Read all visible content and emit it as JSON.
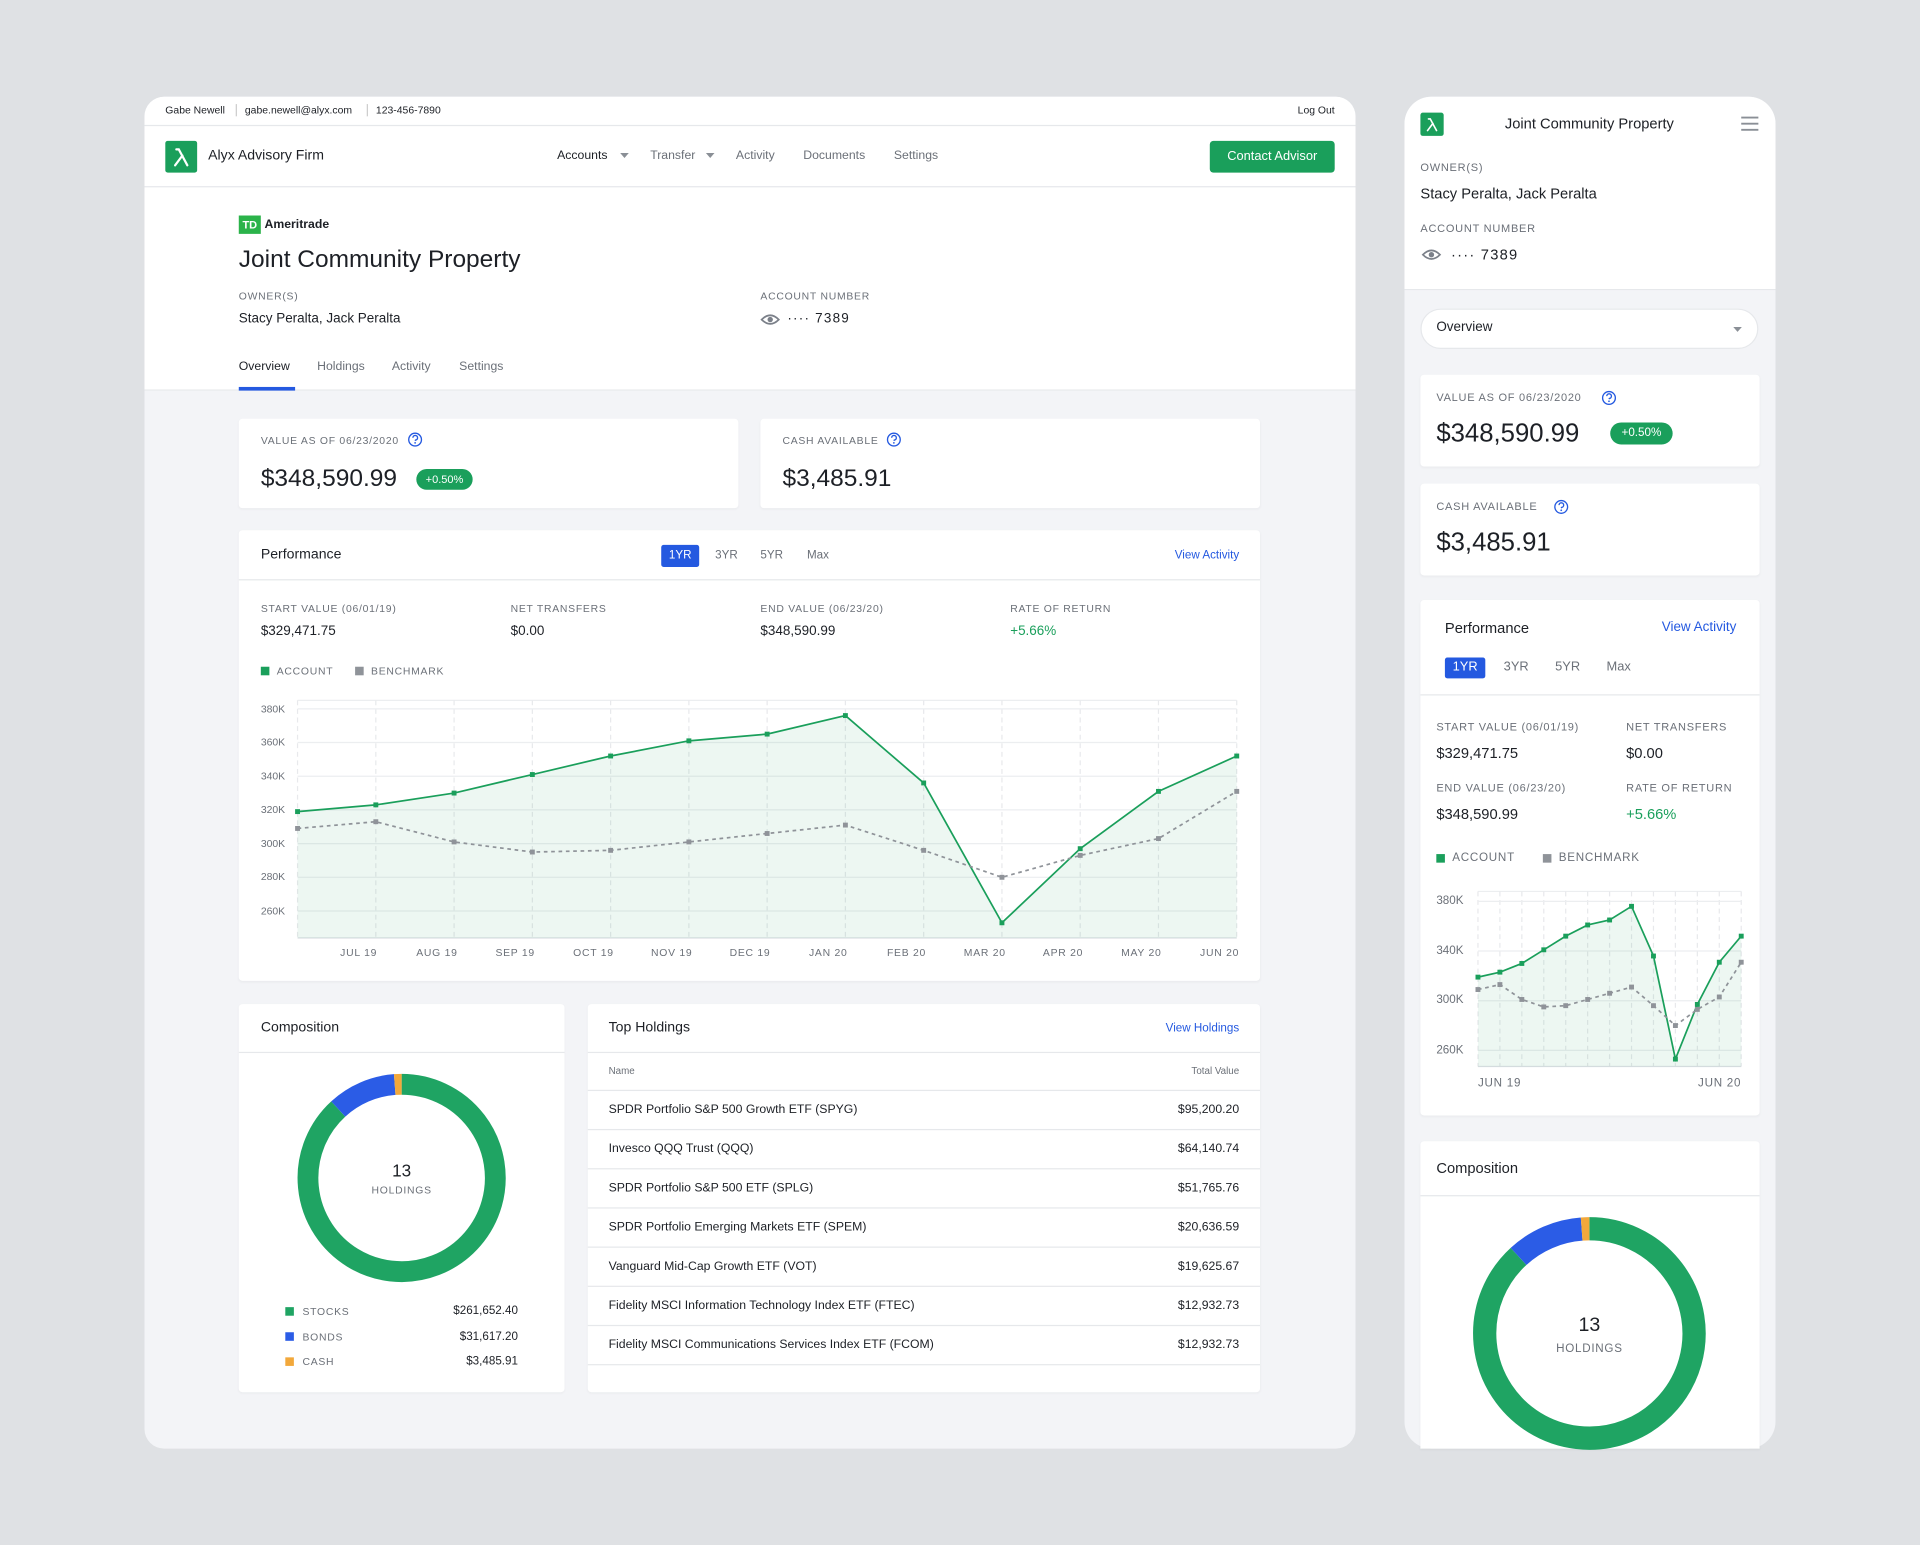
{
  "topbar": {
    "user": "Gabe Newell",
    "email": "gabe.newell@alyx.com",
    "phone": "123-456-7890",
    "logout": "Log Out"
  },
  "nav": {
    "brand": "Alyx Advisory Firm",
    "items": [
      "Accounts",
      "Transfer",
      "Activity",
      "Documents",
      "Settings"
    ],
    "cta": "Contact Advisor"
  },
  "account": {
    "custodian_mark": "TD",
    "custodian": "Ameritrade",
    "title": "Joint Community Property",
    "owners_label": "OWNER(S)",
    "owners": "Stacy Peralta, Jack Peralta",
    "number_label": "ACCOUNT NUMBER",
    "number": "···· 7389",
    "tabs": [
      "Overview",
      "Holdings",
      "Activity",
      "Settings"
    ]
  },
  "summary": {
    "value_label": "VALUE AS OF 06/23/2020",
    "value": "$348,590.99",
    "change": "+0.50%",
    "cash_label": "CASH AVAILABLE",
    "cash": "$3,485.91"
  },
  "performance": {
    "title": "Performance",
    "ranges": [
      "1YR",
      "3YR",
      "5YR",
      "Max"
    ],
    "link": "View Activity",
    "stats": [
      {
        "label": "START VALUE (06/01/19)",
        "value": "$329,471.75"
      },
      {
        "label": "NET TRANSFERS",
        "value": "$0.00"
      },
      {
        "label": "END VALUE (06/23/20)",
        "value": "$348,590.99"
      },
      {
        "label": "RATE OF RETURN",
        "value": "+5.66%"
      }
    ],
    "chart": {
      "type": "line",
      "categories": [
        null,
        "JUL 19",
        "AUG 19",
        "SEP 19",
        "OCT 19",
        "NOV 19",
        "DEC 19",
        "JAN 20",
        "FEB 20",
        "MAR 20",
        "APR 20",
        "MAY 20",
        "JUN 20"
      ],
      "series": [
        {
          "name": "ACCOUNT",
          "color": "#1a9f5b",
          "dashed": false,
          "area": true,
          "values": [
            319,
            323,
            330,
            341,
            352,
            361,
            365,
            376,
            336,
            253,
            297,
            331,
            352
          ]
        },
        {
          "name": "BENCHMARK",
          "color": "#8f9399",
          "dashed": true,
          "area": false,
          "values": [
            309,
            313,
            301,
            295,
            296,
            301,
            306,
            311,
            296,
            280,
            293,
            303,
            331
          ]
        }
      ],
      "ylim": [
        244,
        385
      ],
      "yticks": [
        {
          "value": 260,
          "label": "260K"
        },
        {
          "value": 280,
          "label": "280K"
        },
        {
          "value": 300,
          "label": "300K"
        },
        {
          "value": 320,
          "label": "320K"
        },
        {
          "value": 340,
          "label": "340K"
        },
        {
          "value": 360,
          "label": "360K"
        },
        {
          "value": 380,
          "label": "380K"
        }
      ],
      "grid": true
    }
  },
  "mobile_chart": {
    "type": "line",
    "categories": [
      "JUN 19",
      null,
      null,
      null,
      null,
      null,
      null,
      null,
      null,
      null,
      null,
      null,
      "JUN 20"
    ],
    "ylim": [
      247,
      388
    ],
    "yticks": [
      {
        "value": 260,
        "label": "260K"
      },
      {
        "value": 300,
        "label": "300K"
      },
      {
        "value": 340,
        "label": "340K"
      },
      {
        "value": 380,
        "label": "380K"
      }
    ],
    "grid": true
  },
  "composition": {
    "title": "Composition",
    "count": "13",
    "count_label": "HOLDINGS",
    "chart": {
      "type": "pie",
      "categories": [
        "STOCKS",
        "BONDS",
        "CASH"
      ],
      "values": [
        261652.4,
        31617.2,
        3485.91
      ],
      "value_labels": [
        "$261,652.40",
        "$31,617.20",
        "$3,485.91"
      ],
      "colors": [
        "#1fa463",
        "#2b5ce6",
        "#f2a83b"
      ]
    }
  },
  "holdings": {
    "title": "Top Holdings",
    "link": "View Holdings",
    "columns": [
      "Name",
      "Total Value"
    ],
    "rows": [
      [
        "SPDR Portfolio S&P 500 Growth ETF (SPYG)",
        "$95,200.20"
      ],
      [
        "Invesco QQQ Trust (QQQ)",
        "$64,140.74"
      ],
      [
        "SPDR Portfolio S&P 500 ETF (SPLG)",
        "$51,765.76"
      ],
      [
        "SPDR Portfolio Emerging Markets ETF (SPEM)",
        "$20,636.59"
      ],
      [
        "Vanguard Mid-Cap Growth ETF (VOT)",
        "$19,625.67"
      ],
      [
        "Fidelity MSCI Information Technology Index ETF (FTEC)",
        "$12,932.73"
      ],
      [
        "Fidelity MSCI Communications Services Index ETF (FCOM)",
        "$12,932.73"
      ]
    ]
  }
}
